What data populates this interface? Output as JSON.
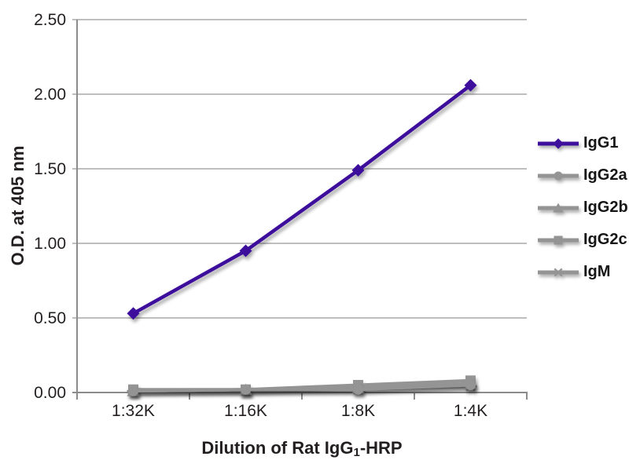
{
  "background_color": "#FFFFFF",
  "chart_data": {
    "type": "line",
    "title": "",
    "ylabel": "O.D. at 405 nm",
    "xlabel_parts": {
      "pre": "Dilution of Rat IgG",
      "sub": "1",
      "post": "-HRP"
    },
    "categories": [
      "1:32K",
      "1:16K",
      "1:8K",
      "1:4K"
    ],
    "ylim": [
      0,
      2.5
    ],
    "ytick_step": 0.5,
    "yticks": [
      "0.00",
      "0.50",
      "1.00",
      "1.50",
      "2.00",
      "2.50"
    ],
    "grid": "horizontal",
    "legend_position": "right",
    "axis_color": "#8c8c8c",
    "grid_color": "#a9a9a9",
    "text_color": "#231f20",
    "series": [
      {
        "name": "IgG1",
        "marker": "diamond",
        "color": "#3e0f9c",
        "values": [
          0.53,
          0.95,
          1.49,
          2.06
        ]
      },
      {
        "name": "IgG2a",
        "marker": "circle",
        "color": "#949494",
        "values": [
          0.01,
          0.02,
          0.02,
          0.05
        ]
      },
      {
        "name": "IgG2b",
        "marker": "triangle",
        "color": "#949494",
        "values": [
          0.01,
          0.02,
          0.03,
          0.06
        ]
      },
      {
        "name": "IgG2c",
        "marker": "square",
        "color": "#949494",
        "values": [
          0.02,
          0.02,
          0.05,
          0.08
        ]
      },
      {
        "name": "IgM",
        "marker": "star",
        "color": "#949494",
        "values": [
          0.01,
          0.01,
          0.02,
          0.04
        ]
      }
    ]
  }
}
